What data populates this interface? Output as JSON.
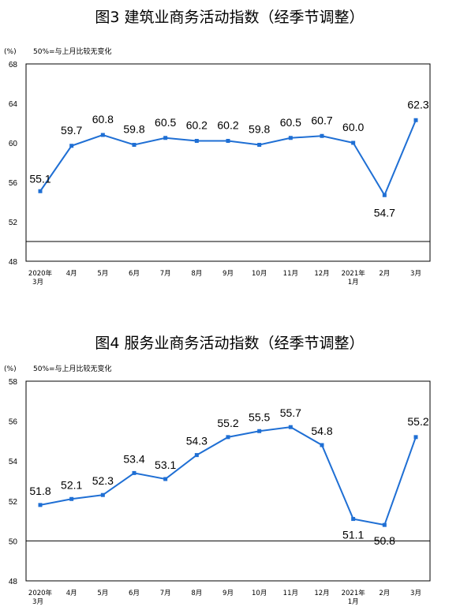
{
  "chart_data": [
    {
      "type": "line",
      "title": "图3  建筑业商务活动指数（经季节调整）",
      "unit_label": "(%)",
      "note": "50%=与上月比较无变化",
      "categories": [
        [
          "2020年",
          "3月"
        ],
        [
          "4月"
        ],
        [
          "5月"
        ],
        [
          "6月"
        ],
        [
          "7月"
        ],
        [
          "8月"
        ],
        [
          "9月"
        ],
        [
          "10月"
        ],
        [
          "11月"
        ],
        [
          "12月"
        ],
        [
          "2021年",
          "1月"
        ],
        [
          "2月"
        ],
        [
          "3月"
        ]
      ],
      "values": [
        55.1,
        59.7,
        60.8,
        59.8,
        60.5,
        60.2,
        60.2,
        59.8,
        60.5,
        60.7,
        60.0,
        54.7,
        62.3
      ],
      "value_labels": [
        "55.1",
        "59.7",
        "60.8",
        "59.8",
        "60.5",
        "60.2",
        "60.2",
        "59.8",
        "60.5",
        "60.7",
        "60.0",
        "54.7",
        "62.3"
      ],
      "yticks": [
        "48",
        "52",
        "56",
        "60",
        "64",
        "68"
      ],
      "ylim": [
        48,
        68
      ],
      "reference_line": 50,
      "line_color": "#1F6FD4"
    },
    {
      "type": "line",
      "title": "图4  服务业商务活动指数（经季节调整）",
      "unit_label": "(%)",
      "note": "50%=与上月比较无变化",
      "categories": [
        [
          "2020年",
          "3月"
        ],
        [
          "4月"
        ],
        [
          "5月"
        ],
        [
          "6月"
        ],
        [
          "7月"
        ],
        [
          "8月"
        ],
        [
          "9月"
        ],
        [
          "10月"
        ],
        [
          "11月"
        ],
        [
          "12月"
        ],
        [
          "2021年",
          "1月"
        ],
        [
          "2月"
        ],
        [
          "3月"
        ]
      ],
      "values": [
        51.8,
        52.1,
        52.3,
        53.4,
        53.1,
        54.3,
        55.2,
        55.5,
        55.7,
        54.8,
        51.1,
        50.8,
        55.2
      ],
      "value_labels": [
        "51.8",
        "52.1",
        "52.3",
        "53.4",
        "53.1",
        "54.3",
        "55.2",
        "55.5",
        "55.7",
        "54.8",
        "51.1",
        "50.8",
        "55.2"
      ],
      "yticks": [
        "48",
        "50",
        "52",
        "54",
        "56",
        "58"
      ],
      "ylim": [
        48,
        58
      ],
      "reference_line": 50,
      "line_color": "#1F6FD4"
    }
  ]
}
